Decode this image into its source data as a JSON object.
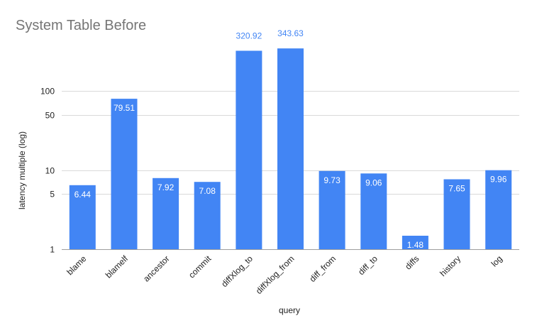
{
  "chart_data": {
    "type": "bar",
    "title": "System Table Before",
    "xlabel": "query",
    "ylabel": "latency multiple (log)",
    "yscale": "log",
    "ylim": [
      1,
      500
    ],
    "yticks": [
      1,
      5,
      10,
      50,
      100
    ],
    "grid": true,
    "legend": "none",
    "categories": [
      "blame",
      "blamelf",
      "ancestor",
      "commit",
      "diffXlog_to",
      "diffXlog_from",
      "diff_from",
      "diff_to",
      "diffs",
      "history",
      "log"
    ],
    "values": [
      6.44,
      79.51,
      7.92,
      7.08,
      320.92,
      343.63,
      9.73,
      9.06,
      1.48,
      7.65,
      9.96
    ],
    "data_labels": [
      "6.44",
      "79.51",
      "7.92",
      "7.08",
      "320.92",
      "343.63",
      "9.73",
      "9.06",
      "1.48",
      "7.65",
      "9.96"
    ],
    "colors": {
      "bar": "#4285f4",
      "label_inside": "#ffffff",
      "label_outside": "#4285f4"
    }
  }
}
